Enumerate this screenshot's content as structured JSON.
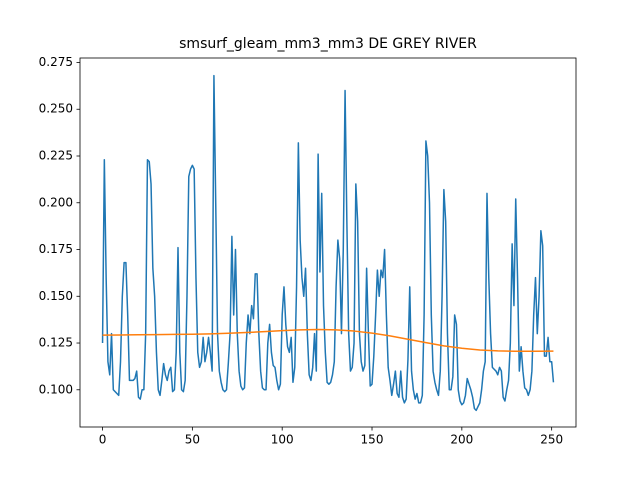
{
  "chart_data": {
    "type": "line",
    "title": "smsurf_gleam_mm3_mm3 DE GREY RIVER",
    "xlim": [
      -12.55,
      263.55
    ],
    "ylim": [
      0.0801,
      0.2774
    ],
    "xticks": [
      0,
      50,
      100,
      150,
      200,
      250
    ],
    "yticks": [
      {
        "value": 0.1,
        "label": "0.100"
      },
      0.125,
      {
        "value": 0.15,
        "label": "0.150"
      },
      0.175,
      {
        "value": 0.2,
        "label": "0.200"
      },
      0.225,
      {
        "value": 0.25,
        "label": "0.250"
      },
      0.275
    ],
    "series": [
      {
        "color": "#1f77b4",
        "x": [
          0,
          1,
          2,
          3,
          4,
          5,
          6,
          7,
          8,
          9,
          10,
          11,
          12,
          13,
          14,
          15,
          16,
          17,
          18,
          19,
          20,
          21,
          22,
          23,
          24,
          25,
          26,
          27,
          28,
          29,
          30,
          31,
          32,
          33,
          34,
          35,
          36,
          37,
          38,
          39,
          40,
          41,
          42,
          43,
          44,
          45,
          46,
          47,
          48,
          49,
          50,
          51,
          52,
          53,
          54,
          55,
          56,
          57,
          58,
          59,
          60,
          61,
          62,
          63,
          64,
          65,
          66,
          67,
          68,
          69,
          70,
          71,
          72,
          73,
          74,
          75,
          76,
          77,
          78,
          79,
          80,
          81,
          82,
          83,
          84,
          85,
          86,
          87,
          88,
          89,
          90,
          91,
          92,
          93,
          94,
          95,
          96,
          97,
          98,
          99,
          100,
          101,
          102,
          103,
          104,
          105,
          106,
          107,
          108,
          109,
          110,
          111,
          112,
          113,
          114,
          115,
          116,
          117,
          118,
          119,
          120,
          121,
          122,
          123,
          124,
          125,
          126,
          127,
          128,
          129,
          130,
          131,
          132,
          133,
          134,
          135,
          136,
          137,
          138,
          139,
          140,
          141,
          142,
          143,
          144,
          145,
          146,
          147,
          148,
          149,
          150,
          151,
          152,
          153,
          154,
          155,
          156,
          157,
          158,
          159,
          160,
          161,
          162,
          163,
          164,
          165,
          166,
          167,
          168,
          169,
          170,
          171,
          172,
          173,
          174,
          175,
          176,
          177,
          178,
          179,
          180,
          181,
          182,
          183,
          184,
          185,
          186,
          187,
          188,
          189,
          190,
          191,
          192,
          193,
          194,
          195,
          196,
          197,
          198,
          199,
          200,
          201,
          202,
          203,
          204,
          205,
          206,
          207,
          208,
          209,
          210,
          211,
          212,
          213,
          214,
          215,
          216,
          217,
          218,
          219,
          220,
          221,
          222,
          223,
          224,
          225,
          226,
          227,
          228,
          229,
          230,
          231,
          232,
          233,
          234,
          235,
          236,
          237,
          238,
          239,
          240,
          241,
          242,
          243,
          244,
          245,
          246,
          247,
          248,
          249,
          250,
          251
        ],
        "values": [
          0.125,
          0.223,
          0.16,
          0.115,
          0.108,
          0.13,
          0.1,
          0.099,
          0.098,
          0.097,
          0.115,
          0.15,
          0.168,
          0.168,
          0.14,
          0.105,
          0.105,
          0.105,
          0.106,
          0.11,
          0.096,
          0.095,
          0.1,
          0.1,
          0.13,
          0.223,
          0.222,
          0.21,
          0.165,
          0.15,
          0.12,
          0.1,
          0.097,
          0.105,
          0.114,
          0.108,
          0.105,
          0.11,
          0.112,
          0.099,
          0.1,
          0.12,
          0.176,
          0.12,
          0.1,
          0.099,
          0.105,
          0.15,
          0.214,
          0.218,
          0.22,
          0.218,
          0.16,
          0.12,
          0.112,
          0.115,
          0.128,
          0.115,
          0.12,
          0.128,
          0.12,
          0.11,
          0.268,
          0.2,
          0.13,
          0.11,
          0.104,
          0.1,
          0.099,
          0.1,
          0.114,
          0.13,
          0.182,
          0.14,
          0.175,
          0.13,
          0.11,
          0.102,
          0.1,
          0.101,
          0.125,
          0.14,
          0.13,
          0.145,
          0.138,
          0.162,
          0.162,
          0.13,
          0.11,
          0.101,
          0.1,
          0.1,
          0.125,
          0.135,
          0.12,
          0.113,
          0.112,
          0.105,
          0.1,
          0.103,
          0.14,
          0.155,
          0.135,
          0.123,
          0.12,
          0.128,
          0.104,
          0.112,
          0.155,
          0.232,
          0.18,
          0.16,
          0.15,
          0.165,
          0.13,
          0.108,
          0.105,
          0.112,
          0.13,
          0.11,
          0.226,
          0.163,
          0.205,
          0.145,
          0.12,
          0.104,
          0.103,
          0.104,
          0.108,
          0.115,
          0.155,
          0.18,
          0.17,
          0.13,
          0.175,
          0.26,
          0.19,
          0.13,
          0.11,
          0.112,
          0.125,
          0.21,
          0.19,
          0.13,
          0.115,
          0.11,
          0.113,
          0.165,
          0.13,
          0.102,
          0.103,
          0.118,
          0.14,
          0.164,
          0.15,
          0.164,
          0.16,
          0.175,
          0.14,
          0.112,
          0.105,
          0.097,
          0.103,
          0.11,
          0.098,
          0.096,
          0.11,
          0.096,
          0.093,
          0.095,
          0.116,
          0.155,
          0.11,
          0.1,
          0.095,
          0.098,
          0.093,
          0.093,
          0.097,
          0.14,
          0.233,
          0.225,
          0.2,
          0.14,
          0.11,
          0.104,
          0.1,
          0.097,
          0.11,
          0.15,
          0.207,
          0.19,
          0.13,
          0.1,
          0.1,
          0.107,
          0.14,
          0.135,
          0.1,
          0.094,
          0.092,
          0.093,
          0.097,
          0.106,
          0.103,
          0.1,
          0.096,
          0.09,
          0.089,
          0.091,
          0.093,
          0.1,
          0.11,
          0.115,
          0.205,
          0.16,
          0.13,
          0.112,
          0.111,
          0.11,
          0.108,
          0.112,
          0.11,
          0.096,
          0.094,
          0.1,
          0.105,
          0.125,
          0.178,
          0.145,
          0.202,
          0.16,
          0.11,
          0.123,
          0.11,
          0.101,
          0.1,
          0.097,
          0.1,
          0.11,
          0.14,
          0.16,
          0.13,
          0.15,
          0.185,
          0.177,
          0.118,
          0.118,
          0.128,
          0.115,
          0.115,
          0.104
        ]
      },
      {
        "color": "#ff7f0e",
        "x": [
          0,
          10,
          20,
          30,
          40,
          50,
          60,
          70,
          80,
          90,
          100,
          110,
          120,
          130,
          140,
          150,
          160,
          170,
          180,
          190,
          200,
          210,
          220,
          230,
          240,
          250,
          251
        ],
        "values": [
          0.1292,
          0.1293,
          0.1294,
          0.1295,
          0.1296,
          0.1297,
          0.1299,
          0.1302,
          0.1306,
          0.1311,
          0.1316,
          0.132,
          0.1322,
          0.132,
          0.1314,
          0.1303,
          0.1288,
          0.127,
          0.1252,
          0.1235,
          0.1222,
          0.1213,
          0.1208,
          0.1206,
          0.1206,
          0.1207,
          0.1207
        ]
      }
    ]
  }
}
